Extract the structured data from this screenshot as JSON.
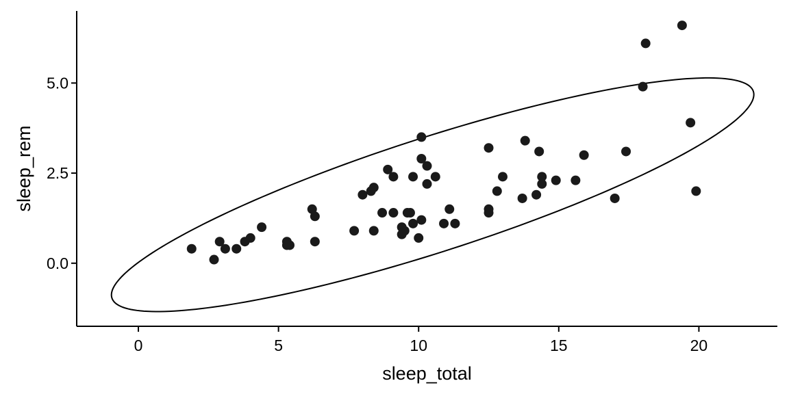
{
  "chart_data": {
    "type": "scatter",
    "xlabel": "sleep_total",
    "ylabel": "sleep_rem",
    "xlim": [
      -2.2,
      22.8
    ],
    "ylim": [
      -1.75,
      7.0
    ],
    "x_ticks": [
      0,
      5,
      10,
      15,
      20
    ],
    "x_tick_labels": [
      "0",
      "5",
      "10",
      "15",
      "20"
    ],
    "y_ticks": [
      0.0,
      2.5,
      5.0
    ],
    "y_tick_labels": [
      "0.0",
      "2.5",
      "5.0"
    ],
    "grid": false,
    "point_color": "#1a1a1a",
    "ellipse": {
      "center": [
        10.5,
        1.9
      ],
      "semi_major_axis": 11.8,
      "semi_minor_axis": 1.62,
      "angle_deg": 13.9
    },
    "points": [
      {
        "x": 1.9,
        "y": 0.4
      },
      {
        "x": 2.7,
        "y": 0.1
      },
      {
        "x": 2.9,
        "y": 0.6
      },
      {
        "x": 3.1,
        "y": 0.4
      },
      {
        "x": 3.5,
        "y": 0.4
      },
      {
        "x": 3.8,
        "y": 0.6
      },
      {
        "x": 4.0,
        "y": 0.7
      },
      {
        "x": 4.4,
        "y": 1.0
      },
      {
        "x": 5.3,
        "y": 0.6
      },
      {
        "x": 5.3,
        "y": 0.5
      },
      {
        "x": 5.4,
        "y": 0.5
      },
      {
        "x": 6.2,
        "y": 1.5
      },
      {
        "x": 6.3,
        "y": 1.3
      },
      {
        "x": 6.3,
        "y": 0.6
      },
      {
        "x": 7.7,
        "y": 0.9
      },
      {
        "x": 8.0,
        "y": 1.9
      },
      {
        "x": 8.3,
        "y": 2.0
      },
      {
        "x": 8.4,
        "y": 2.1
      },
      {
        "x": 8.4,
        "y": 0.9
      },
      {
        "x": 8.7,
        "y": 1.4
      },
      {
        "x": 8.9,
        "y": 2.6
      },
      {
        "x": 9.1,
        "y": 2.4
      },
      {
        "x": 9.1,
        "y": 1.4
      },
      {
        "x": 9.4,
        "y": 1.0
      },
      {
        "x": 9.4,
        "y": 0.8
      },
      {
        "x": 9.5,
        "y": 0.9
      },
      {
        "x": 9.6,
        "y": 1.4
      },
      {
        "x": 9.7,
        "y": 1.4
      },
      {
        "x": 9.8,
        "y": 2.4
      },
      {
        "x": 9.8,
        "y": 1.1
      },
      {
        "x": 10.0,
        "y": 0.7
      },
      {
        "x": 10.1,
        "y": 3.5
      },
      {
        "x": 10.1,
        "y": 2.9
      },
      {
        "x": 10.1,
        "y": 1.2
      },
      {
        "x": 10.3,
        "y": 2.7
      },
      {
        "x": 10.3,
        "y": 2.2
      },
      {
        "x": 10.6,
        "y": 2.4
      },
      {
        "x": 10.9,
        "y": 1.1
      },
      {
        "x": 11.1,
        "y": 1.5
      },
      {
        "x": 11.3,
        "y": 1.1
      },
      {
        "x": 12.5,
        "y": 3.2
      },
      {
        "x": 12.5,
        "y": 1.5
      },
      {
        "x": 12.5,
        "y": 1.4
      },
      {
        "x": 12.8,
        "y": 2.0
      },
      {
        "x": 13.0,
        "y": 2.4
      },
      {
        "x": 13.7,
        "y": 1.8
      },
      {
        "x": 13.8,
        "y": 3.4
      },
      {
        "x": 14.2,
        "y": 1.9
      },
      {
        "x": 14.3,
        "y": 3.1
      },
      {
        "x": 14.4,
        "y": 2.4
      },
      {
        "x": 14.4,
        "y": 2.2
      },
      {
        "x": 14.9,
        "y": 2.3
      },
      {
        "x": 15.6,
        "y": 2.3
      },
      {
        "x": 15.9,
        "y": 3.0
      },
      {
        "x": 17.0,
        "y": 1.8
      },
      {
        "x": 17.4,
        "y": 3.1
      },
      {
        "x": 18.0,
        "y": 4.9
      },
      {
        "x": 18.1,
        "y": 6.1
      },
      {
        "x": 19.4,
        "y": 6.6
      },
      {
        "x": 19.7,
        "y": 3.9
      },
      {
        "x": 19.9,
        "y": 2.0
      }
    ]
  }
}
